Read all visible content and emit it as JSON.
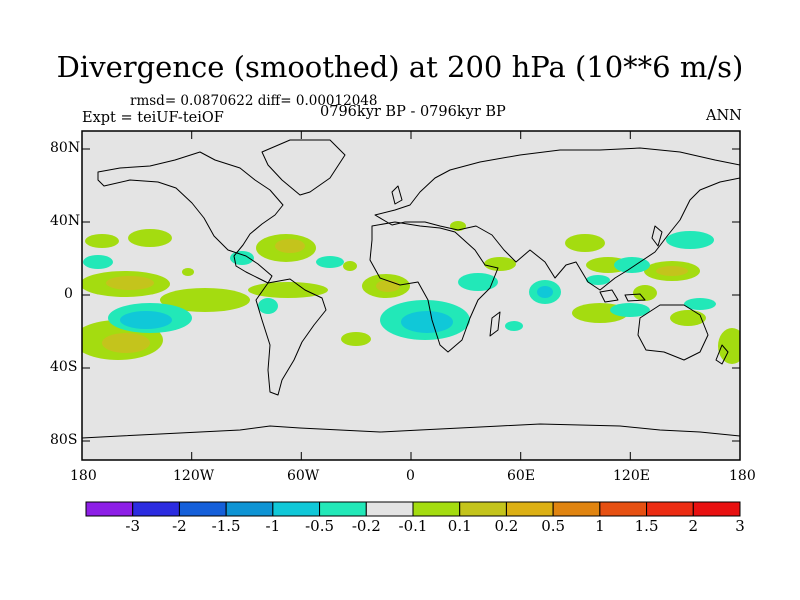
{
  "title": "Divergence (smoothed) at 200 hPa (10**6 m/s)",
  "stats": "rmsd= 0.0870622 diff= 0.00012048",
  "experiment": "Expt = teiUF-teiOF",
  "period": "0796kyr BP - 0796kyr BP",
  "season": "ANN",
  "lat_ticks": [
    "80N",
    "40N",
    "0",
    "40S",
    "80S"
  ],
  "lon_ticks": [
    "180",
    "120W",
    "60W",
    "0",
    "60E",
    "120E",
    "180"
  ],
  "colorbar": {
    "colors": [
      "#8d1fe6",
      "#2c2ce0",
      "#155fd9",
      "#0e94d4",
      "#10c8d8",
      "#22e8b8",
      "#e4e4e4",
      "#a4dc10",
      "#c4c41c",
      "#dcb014",
      "#e08410",
      "#e65012",
      "#ec2c12",
      "#e81010"
    ],
    "labels": [
      "-3",
      "-2",
      "-1.5",
      "-1",
      "-0.5",
      "-0.2",
      "-0.1",
      "0.1",
      "0.2",
      "0.5",
      "1",
      "1.5",
      "2",
      "3"
    ]
  }
}
